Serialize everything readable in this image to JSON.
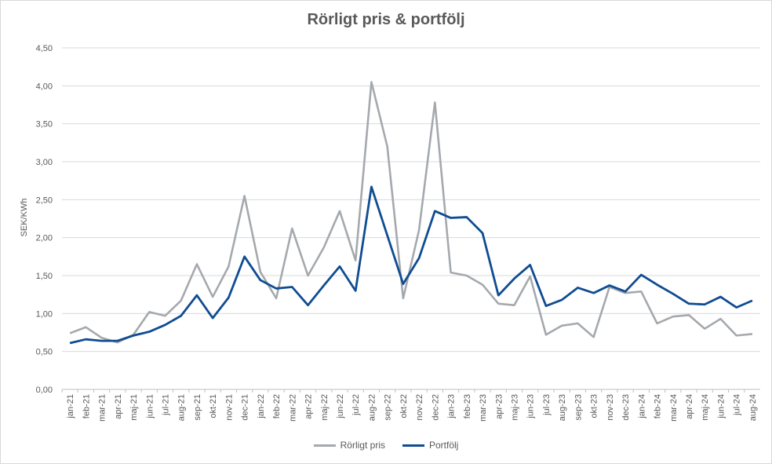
{
  "chart_data": {
    "type": "line",
    "title": "Rörligt pris & portfölj",
    "ylabel": "SEK/KWh",
    "xlabel": "",
    "ylim": [
      0,
      4.5
    ],
    "yticks": [
      "0,00",
      "0,50",
      "1,00",
      "1,50",
      "2,00",
      "2,50",
      "3,00",
      "3,50",
      "4,00",
      "4,50"
    ],
    "grid": true,
    "legend_position": "bottom",
    "categories": [
      "jan-21",
      "feb-21",
      "mar-21",
      "apr-21",
      "maj-21",
      "jun-21",
      "jul-21",
      "aug-21",
      "sep-21",
      "okt-21",
      "nov-21",
      "dec-21",
      "jan-22",
      "feb-22",
      "mar-22",
      "apr-22",
      "maj-22",
      "jun-22",
      "jul-22",
      "aug-22",
      "sep-22",
      "okt-22",
      "nov-22",
      "dec-22",
      "jan-23",
      "feb-23",
      "mar-23",
      "apr-23",
      "maj-23",
      "jun-23",
      "jul-23",
      "aug-23",
      "sep-23",
      "okt-23",
      "nov-23",
      "dec-23",
      "jan-24",
      "feb-24",
      "mar-24",
      "apr-24",
      "maj-24",
      "jun-24",
      "jul-24",
      "aug-24"
    ],
    "series": [
      {
        "name": "Rörligt pris",
        "color": "#a5a9ad",
        "values": [
          0.74,
          0.82,
          0.68,
          0.62,
          0.72,
          1.02,
          0.97,
          1.17,
          1.65,
          1.22,
          1.62,
          2.55,
          1.55,
          1.2,
          2.12,
          1.5,
          1.87,
          2.35,
          1.7,
          4.05,
          3.2,
          1.2,
          2.1,
          3.78,
          1.54,
          1.5,
          1.38,
          1.13,
          1.11,
          1.49,
          0.72,
          0.84,
          0.87,
          0.69,
          1.35,
          1.27,
          1.29,
          0.87,
          0.96,
          0.98,
          0.8,
          0.93,
          0.71,
          0.73
        ]
      },
      {
        "name": "Portfölj",
        "color": "#0f4c92",
        "values": [
          0.61,
          0.66,
          0.64,
          0.64,
          0.71,
          0.76,
          0.85,
          0.97,
          1.24,
          0.94,
          1.21,
          1.75,
          1.44,
          1.33,
          1.35,
          1.11,
          1.37,
          1.62,
          1.3,
          2.67,
          2.03,
          1.39,
          1.73,
          2.35,
          2.26,
          2.27,
          2.06,
          1.24,
          1.46,
          1.64,
          1.1,
          1.18,
          1.34,
          1.27,
          1.37,
          1.29,
          1.51,
          1.38,
          1.26,
          1.13,
          1.12,
          1.22,
          1.08,
          1.17
        ]
      }
    ]
  }
}
